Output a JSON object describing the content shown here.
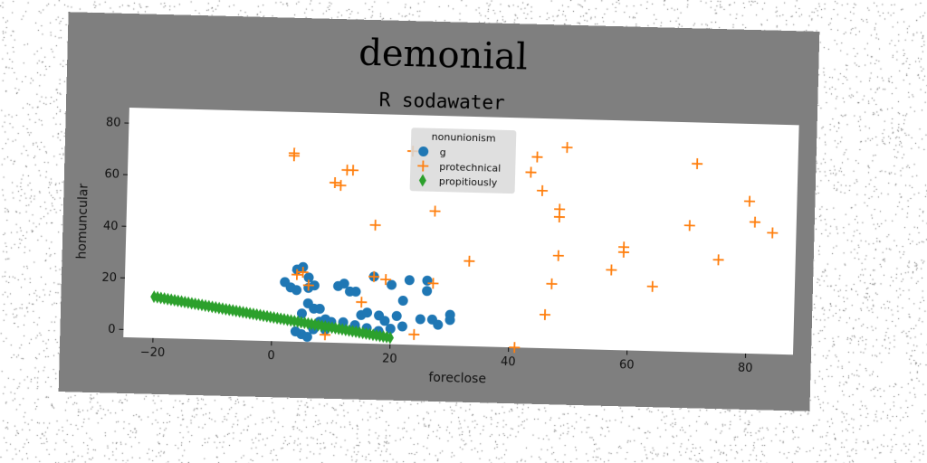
{
  "chart_data": {
    "type": "scatter",
    "title": "demonial",
    "subtitle": "R sodawater",
    "xlabel": "foreclose",
    "ylabel": "homuncular",
    "xlim": [
      -25,
      88
    ],
    "ylim": [
      -3,
      86
    ],
    "xticks": [
      -20,
      0,
      20,
      40,
      60,
      80
    ],
    "yticks": [
      0,
      20,
      40,
      60,
      80
    ],
    "grid": false,
    "legend": {
      "title": "nonunionism",
      "placement": "top-center"
    },
    "colors": {
      "figure_bg": "#7f7f7f",
      "plot_bg": "#ffffff"
    },
    "series": [
      {
        "name": "g",
        "marker": "circle",
        "color": "#1f77b4",
        "points": [
          [
            2,
            20
          ],
          [
            3,
            18
          ],
          [
            4,
            17
          ],
          [
            4,
            25
          ],
          [
            5,
            26
          ],
          [
            6,
            22
          ],
          [
            6,
            18
          ],
          [
            7,
            19
          ],
          [
            7,
            10
          ],
          [
            8,
            10
          ],
          [
            8,
            5
          ],
          [
            9,
            6
          ],
          [
            10,
            5
          ],
          [
            11,
            19
          ],
          [
            12,
            20
          ],
          [
            12,
            5
          ],
          [
            13,
            17
          ],
          [
            14,
            17
          ],
          [
            15,
            8
          ],
          [
            16,
            9
          ],
          [
            17,
            23
          ],
          [
            18,
            8
          ],
          [
            19,
            6
          ],
          [
            20,
            20
          ],
          [
            21,
            8
          ],
          [
            22,
            14
          ],
          [
            23,
            22
          ],
          [
            25,
            7
          ],
          [
            26,
            18
          ],
          [
            26,
            22
          ],
          [
            27,
            7
          ],
          [
            28,
            5
          ],
          [
            30,
            7
          ],
          [
            30,
            9
          ],
          [
            5,
            0
          ],
          [
            6,
            -1
          ],
          [
            7,
            2
          ],
          [
            4,
            1
          ],
          [
            9,
            2
          ],
          [
            12,
            3
          ],
          [
            14,
            4
          ],
          [
            16,
            3
          ],
          [
            18,
            2
          ],
          [
            20,
            3
          ],
          [
            22,
            4
          ],
          [
            5,
            8
          ],
          [
            6,
            12
          ]
        ]
      },
      {
        "name": "protechnical",
        "marker": "plus",
        "color": "#ff7f0e",
        "points": [
          [
            3,
            70
          ],
          [
            3,
            69
          ],
          [
            10,
            59
          ],
          [
            11,
            58
          ],
          [
            12,
            64
          ],
          [
            13,
            64
          ],
          [
            17,
            43
          ],
          [
            23,
            72
          ],
          [
            27,
            49
          ],
          [
            33,
            30
          ],
          [
            41,
            -3
          ],
          [
            43,
            65
          ],
          [
            44,
            71
          ],
          [
            45,
            58
          ],
          [
            46,
            10
          ],
          [
            47,
            22
          ],
          [
            48,
            33
          ],
          [
            48,
            48
          ],
          [
            48,
            51
          ],
          [
            49,
            75
          ],
          [
            57,
            28
          ],
          [
            59,
            35
          ],
          [
            59,
            37
          ],
          [
            64,
            22
          ],
          [
            70,
            46
          ],
          [
            71,
            70
          ],
          [
            75,
            33
          ],
          [
            80,
            56
          ],
          [
            81,
            48
          ],
          [
            84,
            44
          ],
          [
            4,
            23
          ],
          [
            5,
            24
          ],
          [
            6,
            19
          ],
          [
            9,
            0
          ],
          [
            15,
            13
          ],
          [
            17,
            23
          ],
          [
            19,
            22
          ],
          [
            24,
            1
          ],
          [
            27,
            21
          ]
        ]
      },
      {
        "name": "propitiously",
        "marker": "diamond",
        "color": "#2ca02c",
        "line": {
          "x_from": -20,
          "x_to": 20,
          "y_from": 13,
          "y_to": -0.5,
          "count": 70
        }
      }
    ]
  }
}
